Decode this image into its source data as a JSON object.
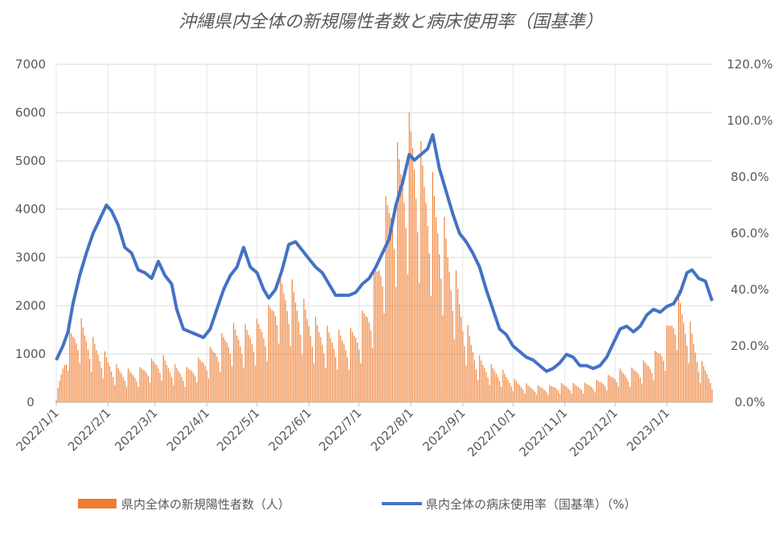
{
  "chart_data": {
    "type": "bar+line",
    "title": "沖縄県内全体の新規陽性者数と病床使用率（国基準）",
    "y_left": {
      "ticks": [
        "0",
        "1000",
        "2000",
        "3000",
        "4000",
        "5000",
        "6000",
        "7000"
      ],
      "range": [
        0,
        7000
      ]
    },
    "y_right": {
      "ticks": [
        "0.0%",
        "20.0%",
        "40.0%",
        "60.0%",
        "80.0%",
        "100.0%",
        "120.0%"
      ],
      "range": [
        0,
        120
      ]
    },
    "x_ticks": [
      "2022/1/1",
      "2022/2/1",
      "2022/3/1",
      "2022/4/1",
      "2022/5/1",
      "2022/6/1",
      "2022/7/1",
      "2022/8/1",
      "2022/9/1",
      "2022/10/1",
      "2022/11/1",
      "2022/12/1",
      "2023/1/1"
    ],
    "x_range": [
      "2022/1/1",
      "2023/1/28"
    ],
    "grid": true,
    "legend_position": "bottom",
    "series": [
      {
        "name": "県内全体の新規陽性者数（人）",
        "kind": "bar",
        "axis": "left",
        "color": "#ED7D31",
        "weekly_peaks": [
          [
            "2022/1/1",
            100
          ],
          [
            "2022/1/8",
            1450
          ],
          [
            "2022/1/15",
            1800
          ],
          [
            "2022/1/22",
            1400
          ],
          [
            "2022/1/29",
            1100
          ],
          [
            "2022/2/5",
            800
          ],
          [
            "2022/2/12",
            700
          ],
          [
            "2022/2/19",
            700
          ],
          [
            "2022/2/26",
            900
          ],
          [
            "2022/3/5",
            1000
          ],
          [
            "2022/3/12",
            800
          ],
          [
            "2022/3/19",
            700
          ],
          [
            "2022/3/26",
            900
          ],
          [
            "2022/4/2",
            1100
          ],
          [
            "2022/4/9",
            1400
          ],
          [
            "2022/4/16",
            1650
          ],
          [
            "2022/4/23",
            1600
          ],
          [
            "2022/4/30",
            1700
          ],
          [
            "2022/5/7",
            1900
          ],
          [
            "2022/5/14",
            2700
          ],
          [
            "2022/5/21",
            2600
          ],
          [
            "2022/5/28",
            2200
          ],
          [
            "2022/6/4",
            1800
          ],
          [
            "2022/6/11",
            1600
          ],
          [
            "2022/6/18",
            1500
          ],
          [
            "2022/6/25",
            1500
          ],
          [
            "2022/7/2",
            1800
          ],
          [
            "2022/7/9",
            2500
          ],
          [
            "2022/7/16",
            4100
          ],
          [
            "2022/7/23",
            5300
          ],
          [
            "2022/7/30",
            5900
          ],
          [
            "2022/8/2",
            6200
          ],
          [
            "2022/8/6",
            5500
          ],
          [
            "2022/8/13",
            4900
          ],
          [
            "2022/8/20",
            4000
          ],
          [
            "2022/8/27",
            2900
          ],
          [
            "2022/9/3",
            1700
          ],
          [
            "2022/9/10",
            1000
          ],
          [
            "2022/9/17",
            800
          ],
          [
            "2022/9/24",
            700
          ],
          [
            "2022/10/1",
            500
          ],
          [
            "2022/10/8",
            400
          ],
          [
            "2022/10/15",
            350
          ],
          [
            "2022/10/22",
            350
          ],
          [
            "2022/10/29",
            400
          ],
          [
            "2022/11/5",
            400
          ],
          [
            "2022/11/12",
            400
          ],
          [
            "2022/11/19",
            450
          ],
          [
            "2022/11/26",
            550
          ],
          [
            "2022/12/3",
            700
          ],
          [
            "2022/12/10",
            700
          ],
          [
            "2022/12/17",
            850
          ],
          [
            "2022/12/24",
            1000
          ],
          [
            "2022/12/31",
            1450
          ],
          [
            "2023/1/7",
            2400
          ],
          [
            "2023/1/14",
            1800
          ],
          [
            "2023/1/21",
            900
          ],
          [
            "2023/1/28",
            600
          ]
        ]
      },
      {
        "name": "県内全体の病床使用率（国基準）（%）",
        "kind": "line",
        "axis": "right",
        "color": "#4472C4",
        "points": [
          [
            "2022/1/1",
            15
          ],
          [
            "2022/1/5",
            20
          ],
          [
            "2022/1/8",
            25
          ],
          [
            "2022/1/11",
            35
          ],
          [
            "2022/1/15",
            45
          ],
          [
            "2022/1/19",
            53
          ],
          [
            "2022/1/23",
            60
          ],
          [
            "2022/1/27",
            65
          ],
          [
            "2022/1/31",
            70
          ],
          [
            "2022/2/3",
            68
          ],
          [
            "2022/2/7",
            63
          ],
          [
            "2022/2/11",
            55
          ],
          [
            "2022/2/15",
            53
          ],
          [
            "2022/2/19",
            47
          ],
          [
            "2022/2/23",
            46
          ],
          [
            "2022/2/27",
            44
          ],
          [
            "2022/3/3",
            50
          ],
          [
            "2022/3/7",
            45
          ],
          [
            "2022/3/11",
            42
          ],
          [
            "2022/3/14",
            33
          ],
          [
            "2022/3/18",
            26
          ],
          [
            "2022/3/22",
            25
          ],
          [
            "2022/3/26",
            24
          ],
          [
            "2022/3/30",
            23
          ],
          [
            "2022/4/3",
            26
          ],
          [
            "2022/4/7",
            33
          ],
          [
            "2022/4/11",
            40
          ],
          [
            "2022/4/15",
            45
          ],
          [
            "2022/4/19",
            48
          ],
          [
            "2022/4/23",
            55
          ],
          [
            "2022/4/27",
            48
          ],
          [
            "2022/5/1",
            46
          ],
          [
            "2022/5/5",
            40
          ],
          [
            "2022/5/8",
            37
          ],
          [
            "2022/5/12",
            40
          ],
          [
            "2022/5/16",
            47
          ],
          [
            "2022/5/20",
            56
          ],
          [
            "2022/5/24",
            57
          ],
          [
            "2022/5/28",
            54
          ],
          [
            "2022/6/1",
            51
          ],
          [
            "2022/6/5",
            48
          ],
          [
            "2022/6/9",
            46
          ],
          [
            "2022/6/13",
            42
          ],
          [
            "2022/6/17",
            38
          ],
          [
            "2022/6/21",
            38
          ],
          [
            "2022/6/25",
            38
          ],
          [
            "2022/6/29",
            39
          ],
          [
            "2022/7/3",
            42
          ],
          [
            "2022/7/7",
            44
          ],
          [
            "2022/7/11",
            48
          ],
          [
            "2022/7/15",
            53
          ],
          [
            "2022/7/19",
            58
          ],
          [
            "2022/7/23",
            70
          ],
          [
            "2022/7/27",
            78
          ],
          [
            "2022/7/31",
            88
          ],
          [
            "2022/8/3",
            86
          ],
          [
            "2022/8/7",
            88
          ],
          [
            "2022/8/11",
            90
          ],
          [
            "2022/8/14",
            95
          ],
          [
            "2022/8/18",
            83
          ],
          [
            "2022/8/22",
            75
          ],
          [
            "2022/8/26",
            67
          ],
          [
            "2022/8/30",
            60
          ],
          [
            "2022/9/3",
            57
          ],
          [
            "2022/9/7",
            53
          ],
          [
            "2022/9/11",
            48
          ],
          [
            "2022/9/15",
            40
          ],
          [
            "2022/9/19",
            33
          ],
          [
            "2022/9/23",
            26
          ],
          [
            "2022/9/27",
            24
          ],
          [
            "2022/10/1",
            20
          ],
          [
            "2022/10/5",
            18
          ],
          [
            "2022/10/9",
            16
          ],
          [
            "2022/10/13",
            15
          ],
          [
            "2022/10/17",
            13
          ],
          [
            "2022/10/21",
            11
          ],
          [
            "2022/10/25",
            12
          ],
          [
            "2022/10/29",
            14
          ],
          [
            "2022/11/2",
            17
          ],
          [
            "2022/11/6",
            16
          ],
          [
            "2022/11/10",
            13
          ],
          [
            "2022/11/14",
            13
          ],
          [
            "2022/11/18",
            12
          ],
          [
            "2022/11/22",
            13
          ],
          [
            "2022/11/26",
            16
          ],
          [
            "2022/11/30",
            21
          ],
          [
            "2022/12/4",
            26
          ],
          [
            "2022/12/8",
            27
          ],
          [
            "2022/12/12",
            25
          ],
          [
            "2022/12/16",
            27
          ],
          [
            "2022/12/20",
            31
          ],
          [
            "2022/12/24",
            33
          ],
          [
            "2022/12/28",
            32
          ],
          [
            "2023/1/1",
            34
          ],
          [
            "2023/1/5",
            35
          ],
          [
            "2023/1/9",
            39
          ],
          [
            "2023/1/13",
            46
          ],
          [
            "2023/1/16",
            47
          ],
          [
            "2023/1/20",
            44
          ],
          [
            "2023/1/24",
            43
          ],
          [
            "2023/1/28",
            36
          ]
        ]
      }
    ]
  }
}
